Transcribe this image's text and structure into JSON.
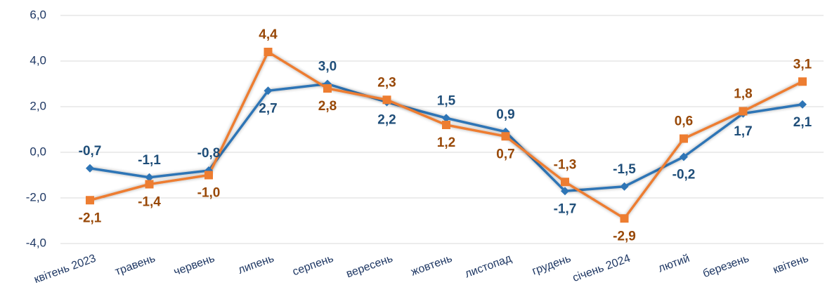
{
  "chart_data": {
    "type": "line",
    "categories": [
      "квітень 2023",
      "травень",
      "червень",
      "липень",
      "серпень",
      "вересень",
      "жовтень",
      "листопад",
      "грудень",
      "січень 2024",
      "лютий",
      "березень",
      "квітень"
    ],
    "series": [
      {
        "color": "#2e75b6",
        "label_color": "#1f4e79",
        "marker": "diamond",
        "values": [
          -0.7,
          -1.1,
          -0.8,
          2.7,
          3.0,
          2.2,
          1.5,
          0.9,
          -1.7,
          -1.5,
          -0.2,
          1.7,
          2.1
        ],
        "value_labels": [
          "-0,7",
          "-1,1",
          "-0,8",
          "2,7",
          "3,0",
          "2,2",
          "1,5",
          "0,9",
          "-1,7",
          "-1,5",
          "-0,2",
          "1,7",
          "2,1"
        ]
      },
      {
        "color": "#ed7d31",
        "label_color": "#984807",
        "marker": "square",
        "values": [
          -2.1,
          -1.4,
          -1.0,
          4.4,
          2.8,
          2.3,
          1.2,
          0.7,
          -1.3,
          -2.9,
          0.6,
          1.8,
          3.1
        ],
        "value_labels": [
          "-2,1",
          "-1,4",
          "-1,0",
          "4,4",
          "2,8",
          "2,3",
          "1,2",
          "0,7",
          "-1,3",
          "-2,9",
          "0,6",
          "1,8",
          "3,1"
        ]
      }
    ],
    "ylim": [
      -4,
      6
    ],
    "yticks": [
      {
        "value": -4,
        "label": "-4,0"
      },
      {
        "value": -2,
        "label": "-2,0"
      },
      {
        "value": 0,
        "label": "0,0"
      },
      {
        "value": 2,
        "label": "2,0"
      },
      {
        "value": 4,
        "label": "4,0"
      },
      {
        "value": 6,
        "label": "6,0"
      }
    ],
    "grid": true
  }
}
